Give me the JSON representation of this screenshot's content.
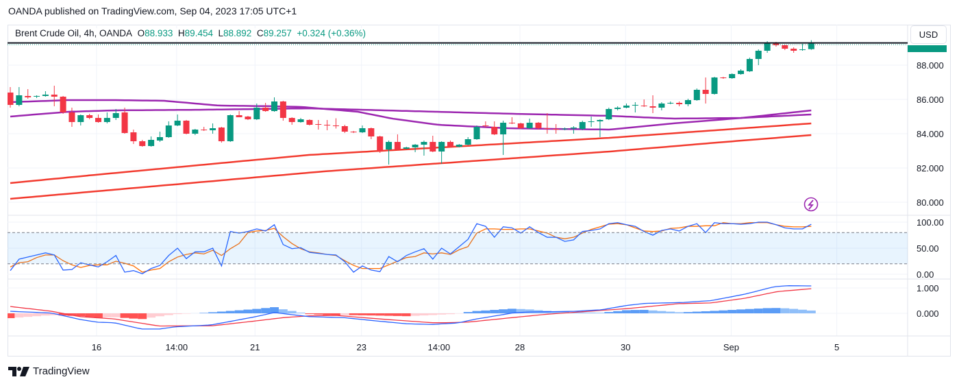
{
  "header": {
    "published": "OANDA published on TradingView.com, Sep 04, 2023 17:05 UTC+1"
  },
  "legend": {
    "symbol": "Brent Crude Oil, 4h, OANDA",
    "open_label": "O",
    "open": "88.933",
    "high_label": "H",
    "high": "89.454",
    "low_label": "L",
    "low": "88.892",
    "close_label": "C",
    "close": "89.257",
    "change": "+0.324 (+0.36%)"
  },
  "currency_button": "USD",
  "brand": {
    "name": "TradingView"
  },
  "icons": {
    "alert": "lightning-icon",
    "logo": "tradingview-logo-icon"
  },
  "colors": {
    "up": "#089981",
    "down": "#f23645",
    "ma_purple": "#9c27b0",
    "ma_red": "#f23a2e",
    "stoch_k": "#2962ff",
    "stoch_d": "#ff6d00",
    "macd": "#2962ff",
    "signal": "#f23645",
    "hist_pos": "#5b9cf6",
    "hist_pos_light": "#90bff9",
    "hist_neg": "#ff5252",
    "hist_neg_light": "#ffcdd2"
  },
  "chart_data": [
    {
      "type": "candlestick",
      "title": "Brent Crude Oil, 4h, OANDA",
      "ylabel": "USD",
      "ylim": [
        79.5,
        90.5
      ],
      "y_ticks": [
        "88.000",
        "86.000",
        "84.000",
        "82.000",
        "80.000"
      ],
      "x_ticks": [
        "16",
        "14:00",
        "21",
        "23",
        "14:00",
        "28",
        "30",
        "Sep",
        "5"
      ],
      "grid": true,
      "ohlc": [
        [
          86.4,
          86.72,
          85.52,
          85.68
        ],
        [
          85.68,
          86.72,
          85.6,
          86.24
        ],
        [
          86.2,
          86.6,
          86.04,
          86.12
        ],
        [
          86.16,
          86.24,
          86.08,
          86.2
        ],
        [
          86.2,
          86.48,
          86.16,
          86.28
        ],
        [
          86.28,
          86.8,
          85.6,
          86.16
        ],
        [
          86.16,
          86.2,
          85.16,
          85.24
        ],
        [
          85.24,
          85.52,
          84.4,
          84.68
        ],
        [
          84.68,
          85.12,
          84.48,
          85.08
        ],
        [
          85.08,
          85.16,
          84.84,
          84.92
        ],
        [
          84.92,
          85.12,
          84.64,
          84.68
        ],
        [
          84.68,
          85.24,
          84.6,
          84.92
        ],
        [
          84.92,
          85.44,
          84.8,
          85.2
        ],
        [
          85.24,
          85.52,
          84.0,
          84.04
        ],
        [
          84.08,
          84.24,
          83.4,
          83.56
        ],
        [
          83.56,
          83.64,
          83.24,
          83.28
        ],
        [
          83.28,
          83.84,
          83.24,
          83.64
        ],
        [
          83.6,
          84.12,
          83.52,
          83.8
        ],
        [
          83.8,
          84.72,
          83.76,
          84.48
        ],
        [
          84.48,
          85.12,
          84.44,
          84.76
        ],
        [
          84.76,
          84.8,
          83.96,
          84.0
        ],
        [
          84.0,
          84.28,
          83.92,
          84.24
        ],
        [
          84.24,
          84.4,
          84.16,
          84.2
        ],
        [
          84.2,
          84.6,
          84.0,
          84.32
        ],
        [
          84.36,
          84.4,
          83.48,
          83.56
        ],
        [
          83.56,
          85.12,
          83.52,
          85.08
        ],
        [
          85.08,
          85.32,
          84.96,
          84.96
        ],
        [
          85.0,
          85.04,
          84.8,
          84.84
        ],
        [
          84.84,
          85.76,
          84.8,
          85.52
        ],
        [
          85.52,
          85.8,
          85.28,
          85.32
        ],
        [
          85.32,
          86.12,
          85.28,
          85.88
        ],
        [
          85.88,
          85.92,
          84.76,
          84.92
        ],
        [
          84.92,
          84.96,
          84.52,
          84.68
        ],
        [
          84.68,
          84.92,
          84.64,
          84.84
        ],
        [
          84.8,
          84.84,
          84.48,
          84.52
        ],
        [
          84.56,
          84.8,
          84.24,
          84.52
        ],
        [
          84.52,
          84.8,
          84.2,
          84.48
        ],
        [
          84.48,
          84.9,
          84.3,
          84.44
        ],
        [
          84.44,
          84.52,
          84.04,
          84.12
        ],
        [
          84.12,
          84.16,
          84.04,
          84.08
        ],
        [
          84.08,
          84.48,
          84.04,
          84.32
        ],
        [
          84.32,
          84.36,
          83.68,
          83.84
        ],
        [
          83.84,
          83.88,
          82.88,
          83.0
        ],
        [
          83.08,
          83.6,
          82.2,
          83.52
        ],
        [
          83.52,
          83.96,
          83.04,
          83.08
        ],
        [
          83.12,
          83.24,
          83.08,
          83.2
        ],
        [
          83.2,
          83.4,
          82.92,
          83.36
        ],
        [
          83.36,
          83.6,
          82.72,
          83.52
        ],
        [
          83.52,
          83.88,
          82.92,
          82.96
        ],
        [
          82.96,
          83.56,
          82.24,
          83.52
        ],
        [
          83.52,
          83.6,
          83.2,
          83.24
        ],
        [
          83.24,
          83.4,
          83.2,
          83.36
        ],
        [
          83.36,
          83.8,
          83.32,
          83.68
        ],
        [
          83.68,
          84.48,
          83.64,
          84.4
        ],
        [
          84.48,
          84.72,
          84.36,
          84.44
        ],
        [
          84.4,
          84.72,
          83.92,
          83.96
        ],
        [
          83.96,
          84.76,
          82.76,
          84.64
        ],
        [
          84.64,
          84.96,
          84.56,
          84.6
        ],
        [
          84.6,
          84.64,
          84.28,
          84.32
        ],
        [
          84.32,
          84.88,
          84.28,
          84.64
        ],
        [
          84.64,
          84.68,
          84.24,
          84.32
        ],
        [
          84.32,
          85.2,
          84.0,
          84.28
        ],
        [
          84.28,
          84.56,
          84.0,
          84.26
        ],
        [
          84.26,
          84.36,
          84.2,
          84.3
        ],
        [
          84.3,
          84.44,
          84.0,
          84.36
        ],
        [
          84.28,
          84.76,
          84.2,
          84.68
        ],
        [
          84.68,
          85.0,
          84.4,
          84.72
        ],
        [
          84.72,
          84.84,
          83.8,
          84.8
        ],
        [
          84.84,
          85.52,
          84.8,
          85.44
        ],
        [
          85.44,
          85.6,
          85.36,
          85.52
        ],
        [
          85.52,
          85.76,
          85.48,
          85.64
        ],
        [
          85.64,
          85.84,
          85.24,
          85.68
        ],
        [
          85.64,
          86.0,
          85.56,
          85.6
        ],
        [
          85.6,
          86.24,
          85.2,
          85.52
        ],
        [
          85.52,
          85.84,
          85.36,
          85.76
        ],
        [
          85.76,
          85.88,
          85.72,
          85.8
        ],
        [
          85.8,
          85.88,
          85.6,
          85.72
        ],
        [
          85.72,
          86.04,
          85.6,
          85.96
        ],
        [
          85.96,
          86.64,
          85.92,
          86.56
        ],
        [
          86.56,
          87.28,
          85.76,
          86.32
        ],
        [
          86.32,
          87.32,
          86.28,
          87.28
        ],
        [
          87.28,
          87.32,
          87.2,
          87.24
        ],
        [
          87.24,
          87.52,
          87.2,
          87.48
        ],
        [
          87.48,
          87.76,
          87.44,
          87.68
        ],
        [
          87.64,
          88.44,
          87.6,
          88.36
        ],
        [
          88.36,
          88.92,
          88.0,
          88.84
        ],
        [
          88.84,
          89.4,
          88.72,
          89.32
        ],
        [
          89.32,
          89.36,
          89.08,
          89.16
        ],
        [
          89.16,
          89.2,
          88.88,
          88.96
        ],
        [
          88.96,
          89.04,
          88.72,
          88.84
        ],
        [
          88.88,
          89.24,
          88.84,
          88.92
        ],
        [
          88.933,
          89.454,
          88.892,
          89.257
        ]
      ],
      "moving_averages": [
        {
          "color": "#9c27b0",
          "points_bar_price": [
            [
              0,
              85.84
            ],
            [
              6.6,
              85.96
            ],
            [
              11.8,
              85.96
            ],
            [
              17.5,
              85.92
            ],
            [
              23.7,
              85.64
            ],
            [
              30,
              85.6
            ],
            [
              33.1,
              85.56
            ],
            [
              39.5,
              85.28
            ],
            [
              43.4,
              84.88
            ],
            [
              48.6,
              84.52
            ],
            [
              56.4,
              84.32
            ],
            [
              61.6,
              84.28
            ],
            [
              68.1,
              84.24
            ],
            [
              75.3,
              84.6
            ],
            [
              83.1,
              84.92
            ],
            [
              91,
              85.36
            ]
          ]
        },
        {
          "color": "#9c27b0",
          "points_bar_price": [
            [
              0,
              85.0
            ],
            [
              6.6,
              85.28
            ],
            [
              11.8,
              85.36
            ],
            [
              22.2,
              85.4
            ],
            [
              33.9,
              85.48
            ],
            [
              45.5,
              85.32
            ],
            [
              57.2,
              85.16
            ],
            [
              68.1,
              85.04
            ],
            [
              75.3,
              84.88
            ],
            [
              83.1,
              84.92
            ],
            [
              91,
              85.12
            ]
          ]
        },
        {
          "color": "#f23a2e",
          "points_bar_price": [
            [
              0,
              81.12
            ],
            [
              11.3,
              81.68
            ],
            [
              33.9,
              82.76
            ],
            [
              68.1,
              83.76
            ],
            [
              91,
              84.6
            ]
          ]
        },
        {
          "color": "#f23a2e",
          "points_bar_price": [
            [
              0,
              80.2
            ],
            [
              35.6,
              81.8
            ],
            [
              68.1,
              82.96
            ],
            [
              83.1,
              83.6
            ],
            [
              91,
              83.92
            ]
          ]
        }
      ],
      "last_price": 89.257
    },
    {
      "type": "line",
      "y_ticks": [
        "100.00",
        "50.00",
        "0.00"
      ],
      "ylim": [
        0,
        100
      ],
      "bands": [
        20,
        80
      ],
      "k": [
        7,
        29,
        33,
        37,
        41,
        37,
        8,
        9,
        22,
        18,
        14,
        24,
        36,
        4,
        7,
        1,
        11,
        17,
        36,
        50,
        30,
        43,
        43,
        50,
        16,
        82,
        79,
        82,
        87,
        83,
        95,
        57,
        49,
        51,
        42,
        40,
        38,
        37,
        24,
        4,
        16,
        8,
        5,
        34,
        24,
        36,
        43,
        49,
        29,
        50,
        39,
        53,
        67,
        97,
        92,
        71,
        91,
        89,
        79,
        91,
        80,
        71,
        71,
        63,
        66,
        82,
        84,
        87,
        97,
        99,
        95,
        92,
        82,
        75,
        84,
        87,
        83,
        92,
        97,
        80,
        99,
        97,
        97,
        96,
        97,
        100,
        100,
        95,
        89,
        87,
        87,
        96
      ],
      "d": [
        14,
        22,
        24,
        32,
        37,
        37,
        26,
        18,
        13,
        17,
        18,
        18,
        25,
        21,
        16,
        4,
        8,
        11,
        24,
        33,
        38,
        41,
        39,
        46,
        36,
        49,
        59,
        80,
        83,
        84,
        88,
        72,
        59,
        49,
        43,
        41,
        38,
        36,
        26,
        17,
        11,
        11,
        11,
        18,
        25,
        32,
        34,
        41,
        39,
        41,
        38,
        47,
        53,
        79,
        87,
        87,
        86,
        86,
        87,
        87,
        83,
        79,
        71,
        68,
        71,
        79,
        86,
        91,
        96,
        97,
        95,
        89,
        83,
        82,
        83,
        88,
        89,
        92,
        92,
        93,
        93,
        99,
        97,
        97,
        99,
        99,
        99,
        95,
        92,
        91,
        91,
        92
      ]
    },
    {
      "type": "line",
      "y_ticks": [
        "1.000",
        "0.000"
      ],
      "macd_bar_value": [
        [
          0,
          0.08
        ],
        [
          4.7,
          0.01
        ],
        [
          7.9,
          -0.24
        ],
        [
          9.9,
          -0.35
        ],
        [
          11.8,
          -0.37
        ],
        [
          14.9,
          -0.62
        ],
        [
          16.9,
          -0.62
        ],
        [
          18.8,
          -0.53
        ],
        [
          22.8,
          -0.46
        ],
        [
          25.9,
          -0.26
        ],
        [
          27.9,
          -0.13
        ],
        [
          30,
          0.03
        ],
        [
          33.9,
          -0.13
        ],
        [
          37.9,
          -0.17
        ],
        [
          41.9,
          -0.31
        ],
        [
          45,
          -0.41
        ],
        [
          47.9,
          -0.44
        ],
        [
          50.8,
          -0.38
        ],
        [
          53,
          -0.22
        ],
        [
          53.9,
          -0.17
        ],
        [
          57,
          0.01
        ],
        [
          58.8,
          0.05
        ],
        [
          64.1,
          0.08
        ],
        [
          67.2,
          0.14
        ],
        [
          70.2,
          0.32
        ],
        [
          72.1,
          0.39
        ],
        [
          76.6,
          0.43
        ],
        [
          79.6,
          0.5
        ],
        [
          83.4,
          0.75
        ],
        [
          86.8,
          1.05
        ],
        [
          88.3,
          1.09
        ],
        [
          91,
          1.08
        ]
      ],
      "signal_bar_value": [
        [
          0,
          0.27
        ],
        [
          4.7,
          0.08
        ],
        [
          7.9,
          -0.13
        ],
        [
          11.8,
          -0.22
        ],
        [
          16.9,
          -0.5
        ],
        [
          23,
          -0.49
        ],
        [
          27.9,
          -0.3
        ],
        [
          31,
          -0.17
        ],
        [
          33.9,
          -0.1
        ],
        [
          37,
          -0.08
        ],
        [
          41.9,
          -0.22
        ],
        [
          47.9,
          -0.37
        ],
        [
          49.4,
          -0.37
        ],
        [
          51.8,
          -0.35
        ],
        [
          52.5,
          -0.33
        ],
        [
          57,
          -0.17
        ],
        [
          60.8,
          -0.04
        ],
        [
          64.5,
          0.05
        ],
        [
          70.2,
          0.19
        ],
        [
          75.9,
          0.38
        ],
        [
          79.6,
          0.41
        ],
        [
          83.4,
          0.59
        ],
        [
          87.2,
          0.86
        ],
        [
          91,
          0.97
        ]
      ]
    }
  ]
}
